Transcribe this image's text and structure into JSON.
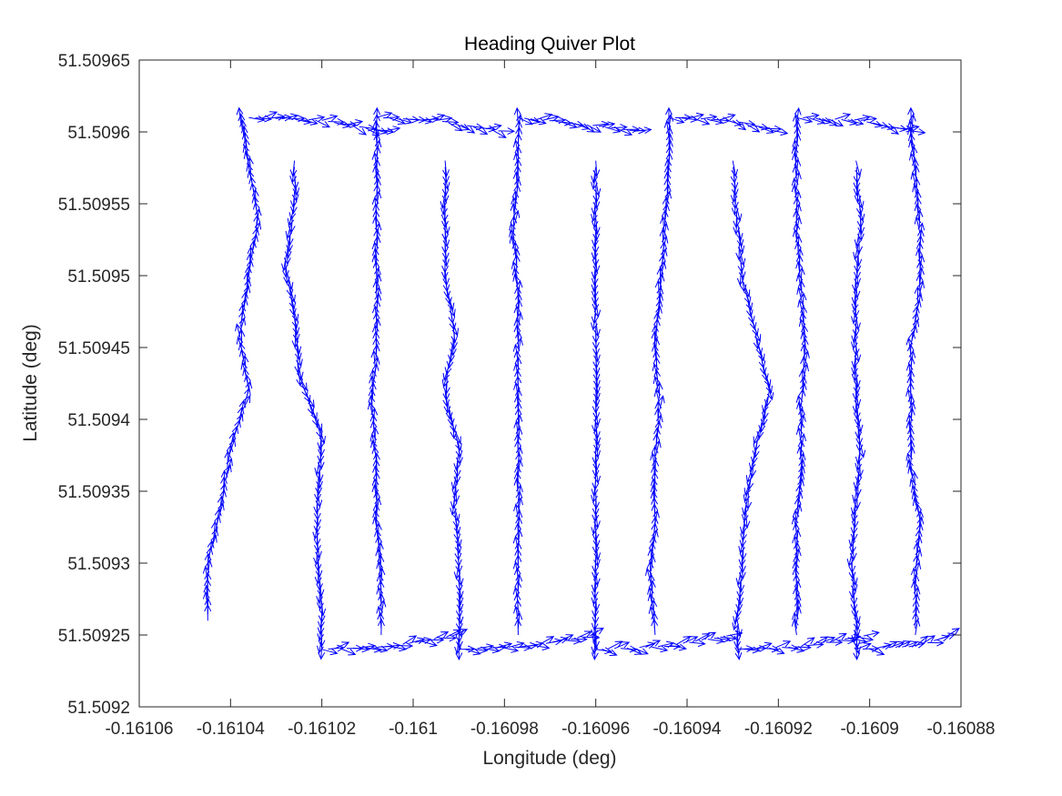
{
  "chart_data": {
    "type": "quiver",
    "title": "Heading Quiver Plot",
    "xlabel": "Longitude (deg)",
    "ylabel": "Latitude (deg)",
    "xlim": [
      -0.16106,
      -0.16088
    ],
    "ylim": [
      51.5092,
      51.50965
    ],
    "x_ticks": [
      -0.16106,
      -0.16104,
      -0.16102,
      -0.161,
      -0.16098,
      -0.16096,
      -0.16094,
      -0.16092,
      -0.1609,
      -0.16088
    ],
    "x_tick_labels": [
      "-0.16106",
      "-0.16104",
      "-0.16102",
      "-0.161",
      "-0.16098",
      "-0.16096",
      "-0.16094",
      "-0.16092",
      "-0.1609",
      "-0.16088"
    ],
    "y_ticks": [
      51.5092,
      51.50925,
      51.5093,
      51.50935,
      51.5094,
      51.50945,
      51.5095,
      51.50955,
      51.5096,
      51.50965
    ],
    "y_tick_labels": [
      "51.5092",
      "51.50925",
      "51.5093",
      "51.50935",
      "51.5094",
      "51.50945",
      "51.5095",
      "51.50955",
      "51.5096",
      "51.50965"
    ],
    "grid": false,
    "arrow_color": "#0000ff",
    "arrow_length_lat": 1.1e-05,
    "legs": [
      {
        "dir": "north",
        "points": [
          [
            -0.161045,
            51.50926
          ],
          [
            -0.161045,
            51.5093
          ],
          [
            -0.161042,
            51.50934
          ],
          [
            -0.16104,
            51.50938
          ],
          [
            -0.161036,
            51.50942
          ],
          [
            -0.161038,
            51.50946
          ],
          [
            -0.161036,
            51.5095
          ],
          [
            -0.161034,
            51.50954
          ],
          [
            -0.161036,
            51.50958
          ],
          [
            -0.161038,
            51.50961
          ]
        ]
      },
      {
        "dir": "east",
        "points": [
          [
            -0.161036,
            51.50961
          ],
          [
            -0.16102,
            51.509608
          ],
          [
            -0.161005,
            51.5096
          ]
        ]
      },
      {
        "dir": "south",
        "points": [
          [
            -0.161026,
            51.50958
          ],
          [
            -0.161026,
            51.50955
          ],
          [
            -0.161028,
            51.50951
          ],
          [
            -0.161026,
            51.50947
          ],
          [
            -0.161025,
            51.50943
          ],
          [
            -0.16102,
            51.50939
          ],
          [
            -0.161021,
            51.50935
          ],
          [
            -0.161021,
            51.50931
          ],
          [
            -0.16102,
            51.50927
          ],
          [
            -0.16102,
            51.50924
          ]
        ]
      },
      {
        "dir": "east",
        "points": [
          [
            -0.16102,
            51.50924
          ],
          [
            -0.161005,
            51.509242
          ],
          [
            -0.16099,
            51.50925
          ]
        ]
      },
      {
        "dir": "north",
        "points": [
          [
            -0.161007,
            51.50925
          ],
          [
            -0.161007,
            51.50929
          ],
          [
            -0.161008,
            51.50933
          ],
          [
            -0.161008,
            51.50937
          ],
          [
            -0.161009,
            51.50941
          ],
          [
            -0.161008,
            51.50945
          ],
          [
            -0.161008,
            51.50949
          ],
          [
            -0.161008,
            51.50953
          ],
          [
            -0.161008,
            51.50957
          ],
          [
            -0.161008,
            51.50961
          ]
        ]
      },
      {
        "dir": "east",
        "points": [
          [
            -0.161008,
            51.50961
          ],
          [
            -0.160995,
            51.509608
          ],
          [
            -0.16098,
            51.5096
          ]
        ]
      },
      {
        "dir": "south",
        "points": [
          [
            -0.160993,
            51.50958
          ],
          [
            -0.160993,
            51.50954
          ],
          [
            -0.160993,
            51.5095
          ],
          [
            -0.160991,
            51.50946
          ],
          [
            -0.160993,
            51.50942
          ],
          [
            -0.16099,
            51.50938
          ],
          [
            -0.160991,
            51.50934
          ],
          [
            -0.16099,
            51.5093
          ],
          [
            -0.16099,
            51.50926
          ],
          [
            -0.16099,
            51.50924
          ]
        ]
      },
      {
        "dir": "east",
        "points": [
          [
            -0.16099,
            51.50924
          ],
          [
            -0.160975,
            51.509242
          ],
          [
            -0.16096,
            51.50925
          ]
        ]
      },
      {
        "dir": "north",
        "points": [
          [
            -0.160977,
            51.50925
          ],
          [
            -0.160977,
            51.50929
          ],
          [
            -0.160977,
            51.50933
          ],
          [
            -0.160977,
            51.50937
          ],
          [
            -0.160977,
            51.50941
          ],
          [
            -0.160977,
            51.50945
          ],
          [
            -0.160977,
            51.50949
          ],
          [
            -0.160978,
            51.50953
          ],
          [
            -0.160977,
            51.50957
          ],
          [
            -0.160977,
            51.50961
          ]
        ]
      },
      {
        "dir": "east",
        "points": [
          [
            -0.160977,
            51.50961
          ],
          [
            -0.160962,
            51.509605
          ],
          [
            -0.16095,
            51.5096
          ]
        ]
      },
      {
        "dir": "south",
        "points": [
          [
            -0.16096,
            51.50958
          ],
          [
            -0.16096,
            51.50954
          ],
          [
            -0.16096,
            51.5095
          ],
          [
            -0.16096,
            51.50946
          ],
          [
            -0.16096,
            51.50942
          ],
          [
            -0.16096,
            51.50938
          ],
          [
            -0.16096,
            51.50934
          ],
          [
            -0.16096,
            51.5093
          ],
          [
            -0.16096,
            51.50926
          ],
          [
            -0.16096,
            51.50924
          ]
        ]
      },
      {
        "dir": "east",
        "points": [
          [
            -0.16096,
            51.50924
          ],
          [
            -0.160945,
            51.509242
          ],
          [
            -0.16093,
            51.50925
          ]
        ]
      },
      {
        "dir": "north",
        "points": [
          [
            -0.160947,
            51.50925
          ],
          [
            -0.160948,
            51.50929
          ],
          [
            -0.160947,
            51.50933
          ],
          [
            -0.160947,
            51.50937
          ],
          [
            -0.160946,
            51.50941
          ],
          [
            -0.160947,
            51.50945
          ],
          [
            -0.160946,
            51.50949
          ],
          [
            -0.160945,
            51.50953
          ],
          [
            -0.160944,
            51.50957
          ],
          [
            -0.160944,
            51.50961
          ]
        ]
      },
      {
        "dir": "east",
        "points": [
          [
            -0.160944,
            51.50961
          ],
          [
            -0.16093,
            51.509608
          ],
          [
            -0.16092,
            51.5096
          ]
        ]
      },
      {
        "dir": "south",
        "points": [
          [
            -0.16093,
            51.50958
          ],
          [
            -0.160929,
            51.50954
          ],
          [
            -0.160928,
            51.5095
          ],
          [
            -0.160925,
            51.50946
          ],
          [
            -0.160922,
            51.50942
          ],
          [
            -0.160925,
            51.50938
          ],
          [
            -0.160927,
            51.50934
          ],
          [
            -0.160928,
            51.5093
          ],
          [
            -0.160929,
            51.50926
          ],
          [
            -0.160929,
            51.50924
          ]
        ]
      },
      {
        "dir": "east",
        "points": [
          [
            -0.160929,
            51.50924
          ],
          [
            -0.160915,
            51.509242
          ],
          [
            -0.1609,
            51.50925
          ]
        ]
      },
      {
        "dir": "north",
        "points": [
          [
            -0.160916,
            51.50925
          ],
          [
            -0.160916,
            51.50929
          ],
          [
            -0.160916,
            51.50933
          ],
          [
            -0.160915,
            51.50937
          ],
          [
            -0.160915,
            51.50941
          ],
          [
            -0.160914,
            51.50945
          ],
          [
            -0.160915,
            51.50949
          ],
          [
            -0.160916,
            51.50953
          ],
          [
            -0.160916,
            51.50957
          ],
          [
            -0.160916,
            51.50961
          ]
        ]
      },
      {
        "dir": "east",
        "points": [
          [
            -0.160916,
            51.50961
          ],
          [
            -0.160902,
            51.509608
          ],
          [
            -0.16089,
            51.5096
          ]
        ]
      },
      {
        "dir": "south",
        "points": [
          [
            -0.160903,
            51.50958
          ],
          [
            -0.160902,
            51.50954
          ],
          [
            -0.160903,
            51.5095
          ],
          [
            -0.160903,
            51.50946
          ],
          [
            -0.160903,
            51.50942
          ],
          [
            -0.160902,
            51.50938
          ],
          [
            -0.160903,
            51.50934
          ],
          [
            -0.160904,
            51.5093
          ],
          [
            -0.160903,
            51.50926
          ],
          [
            -0.160903,
            51.50924
          ]
        ]
      },
      {
        "dir": "east",
        "points": [
          [
            -0.160903,
            51.50924
          ],
          [
            -0.16089,
            51.509242
          ],
          [
            -0.160882,
            51.50925
          ]
        ]
      },
      {
        "dir": "north",
        "points": [
          [
            -0.16089,
            51.50925
          ],
          [
            -0.16089,
            51.50929
          ],
          [
            -0.160889,
            51.50933
          ],
          [
            -0.160891,
            51.50937
          ],
          [
            -0.160891,
            51.50941
          ],
          [
            -0.160891,
            51.50945
          ],
          [
            -0.160889,
            51.50949
          ],
          [
            -0.160889,
            51.50953
          ],
          [
            -0.16089,
            51.50957
          ],
          [
            -0.160891,
            51.50961
          ]
        ]
      }
    ]
  }
}
